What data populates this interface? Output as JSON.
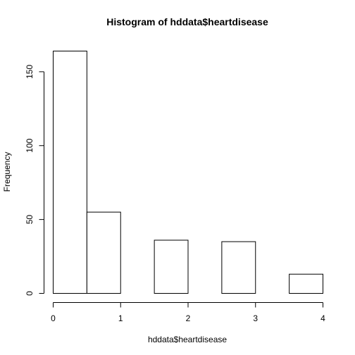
{
  "chart_data": {
    "type": "bar",
    "title": "Histogram of hddata$heartdisease",
    "xlabel": "hddata$heartdisease",
    "ylabel": "Frequency",
    "bins": [
      {
        "from": 0,
        "to": 0.5,
        "count": 164
      },
      {
        "from": 0.5,
        "to": 1,
        "count": 55
      },
      {
        "from": 1,
        "to": 1.5,
        "count": 0
      },
      {
        "from": 1.5,
        "to": 2,
        "count": 36
      },
      {
        "from": 2,
        "to": 2.5,
        "count": 0
      },
      {
        "from": 2.5,
        "to": 3,
        "count": 35
      },
      {
        "from": 3,
        "to": 3.5,
        "count": 0
      },
      {
        "from": 3.5,
        "to": 4,
        "count": 13
      }
    ],
    "xlim": [
      0,
      4
    ],
    "ylim": [
      0,
      164
    ],
    "x_ticks": [
      0,
      1,
      2,
      3,
      4
    ],
    "y_ticks": [
      0,
      50,
      100,
      150
    ],
    "grid": false,
    "fill_color": "#ffffff",
    "stroke_color": "#000000"
  }
}
